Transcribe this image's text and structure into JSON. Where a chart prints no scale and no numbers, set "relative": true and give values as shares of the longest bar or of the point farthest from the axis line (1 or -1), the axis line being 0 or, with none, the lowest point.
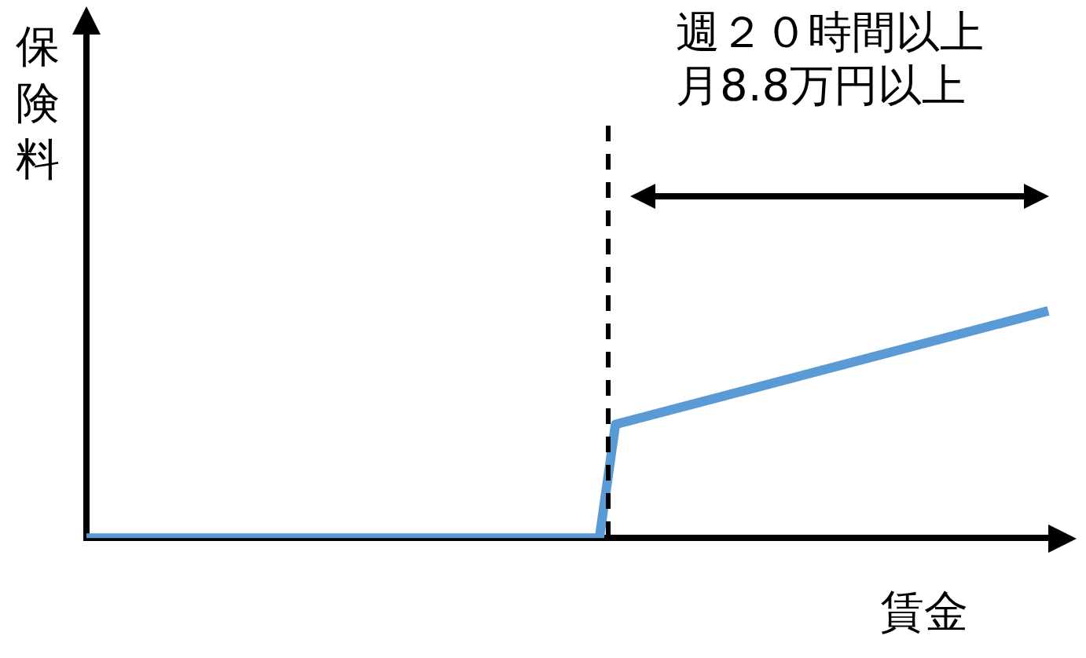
{
  "chart_data": {
    "type": "line",
    "relative": true,
    "ylabel": "保険料",
    "xlabel": "賃金",
    "categories": [
      null,
      null,
      null,
      null,
      null,
      null,
      null,
      null,
      null,
      null,
      null,
      null,
      null,
      null,
      null,
      null,
      null,
      null,
      null,
      null,
      null,
      null,
      null,
      null,
      null,
      null,
      null,
      null,
      null,
      null,
      null,
      null,
      null,
      null,
      null,
      null,
      null,
      null,
      null,
      null,
      null,
      null,
      null,
      null,
      null,
      null,
      null,
      null,
      null,
      null,
      null,
      null,
      null,
      null,
      null,
      null,
      null,
      null,
      null,
      null,
      null
    ],
    "series": [
      {
        "color": "#5b9bd5",
        "values": [
          0,
          null,
          null,
          null,
          null,
          null,
          null,
          null,
          null,
          null,
          null,
          null,
          null,
          null,
          null,
          null,
          null,
          null,
          null,
          null,
          null,
          null,
          null,
          null,
          null,
          null,
          null,
          null,
          null,
          null,
          null,
          null,
          0,
          0.5,
          null,
          null,
          null,
          null,
          null,
          null,
          null,
          null,
          null,
          null,
          null,
          null,
          null,
          null,
          null,
          null,
          null,
          null,
          null,
          null,
          null,
          null,
          null,
          null,
          null,
          null,
          1
        ]
      }
    ],
    "annotations": [
      "週２０時間以上",
      "月8.8万円以上"
    ],
    "grid": false,
    "legend": false,
    "marker": "none",
    "line_style": "solid"
  }
}
